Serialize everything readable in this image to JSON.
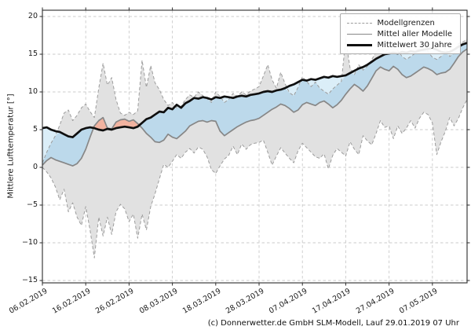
{
  "figure": {
    "ylabel": "Mittlere Lufttemperatur [°]",
    "footer": "(c) Donnerwetter.de GmbH SLM-Modell, Lauf 29.01.2019 07 Uhr"
  },
  "legend": {
    "location": "upper right",
    "items": [
      {
        "label": "Modellgrenzen",
        "style": "dashed-gray"
      },
      {
        "label": "Mittel aller Modelle",
        "style": "solid-gray"
      },
      {
        "label": "Mittelwert 30 Jahre",
        "style": "solid-black"
      }
    ]
  },
  "chart_data": {
    "type": "line",
    "title": "",
    "xlabel": "",
    "ylabel": "Mittlere Lufttemperatur [°]",
    "grid": true,
    "grid_style": "dashed",
    "xlim_days": [
      0,
      98
    ],
    "ylim": [
      -15.3,
      20.8
    ],
    "x_unit": "days (daily values, day 0 = 06.02.2019)",
    "x_ticks": [
      {
        "day": 0,
        "label": "06.02.2019"
      },
      {
        "day": 10,
        "label": "16.02.2019"
      },
      {
        "day": 20,
        "label": "26.02.2019"
      },
      {
        "day": 30,
        "label": "08.03.2019"
      },
      {
        "day": 40,
        "label": "18.03.2019"
      },
      {
        "day": 50,
        "label": "28.03.2019"
      },
      {
        "day": 60,
        "label": "07.04.2019"
      },
      {
        "day": 70,
        "label": "17.04.2019"
      },
      {
        "day": 80,
        "label": "27.04.2019"
      },
      {
        "day": 90,
        "label": "07.05.2019"
      }
    ],
    "y_ticks": [
      {
        "value": 20,
        "label": "20"
      },
      {
        "value": 15,
        "label": "15"
      },
      {
        "value": 10,
        "label": "10"
      },
      {
        "value": 5,
        "label": "5"
      },
      {
        "value": 0,
        "label": "0"
      },
      {
        "value": -5,
        "label": "−5"
      },
      {
        "value": -10,
        "label": "−10"
      },
      {
        "value": -15,
        "label": "−15"
      }
    ],
    "fills": {
      "band": "#e1e1e1",
      "below_normal": "#bcd9eb",
      "below_normal_outside_band": "#dbeef8",
      "above_normal": "#f2b3a0"
    },
    "colors": {
      "band_edge": "#9c9c9c",
      "model_mean": "#878787",
      "mean_30y": "#0f0f0f",
      "grid": "#cbcbcb",
      "frame": "#2b2b2b"
    },
    "series": [
      {
        "name": "Modellgrenzen (oberes Limit)",
        "style": "dashed",
        "color": "#9c9c9c",
        "values": [
          0.6,
          2.0,
          3.2,
          4.2,
          5.6,
          7.2,
          7.6,
          6.2,
          6.9,
          7.9,
          8.4,
          7.4,
          6.6,
          10.5,
          13.8,
          10.9,
          11.9,
          9.0,
          7.2,
          6.9,
          7.3,
          7.0,
          7.5,
          14.2,
          10.6,
          13.5,
          11.2,
          10.3,
          9.0,
          8.2,
          8.6,
          7.9,
          8.1,
          9.0,
          9.6,
          9.3,
          10.0,
          9.5,
          9.1,
          8.6,
          10.0,
          9.4,
          8.6,
          9.0,
          9.8,
          9.4,
          10.0,
          9.6,
          10.1,
          10.4,
          10.7,
          12.1,
          13.6,
          11.6,
          10.5,
          12.6,
          11.1,
          9.9,
          9.5,
          10.6,
          12.0,
          11.4,
          10.7,
          11.3,
          10.5,
          10.1,
          9.7,
          10.4,
          10.9,
          11.4,
          17.0,
          13.2,
          12.3,
          13.6,
          12.9,
          13.4,
          14.3,
          15.3,
          15.9,
          15.4,
          15.7,
          16.3,
          15.5,
          14.7,
          14.3,
          14.7,
          15.1,
          16.0,
          16.6,
          15.3,
          14.6,
          14.3,
          14.7,
          15.9,
          14.7,
          15.1,
          16.4,
          16.6,
          17.0
        ]
      },
      {
        "name": "Modellgrenzen (unteres Limit)",
        "style": "dashed",
        "color": "#9c9c9c",
        "values": [
          0.0,
          -0.6,
          -1.4,
          -2.6,
          -4.3,
          -2.9,
          -5.9,
          -4.7,
          -6.6,
          -7.7,
          -5.2,
          -8.3,
          -12.0,
          -6.6,
          -9.1,
          -6.6,
          -8.9,
          -5.9,
          -4.9,
          -5.5,
          -7.2,
          -6.2,
          -9.4,
          -6.2,
          -8.3,
          -5.2,
          -3.5,
          -1.5,
          0.4,
          0.0,
          0.8,
          1.7,
          1.2,
          2.0,
          2.5,
          1.9,
          2.7,
          2.4,
          1.4,
          -0.3,
          -0.8,
          0.2,
          1.1,
          1.6,
          2.8,
          1.7,
          3.1,
          2.4,
          3.0,
          3.2,
          3.3,
          3.6,
          2.0,
          0.3,
          1.5,
          2.6,
          1.9,
          1.2,
          0.6,
          2.2,
          3.2,
          2.6,
          2.0,
          1.4,
          1.2,
          1.8,
          -0.2,
          1.6,
          2.5,
          2.0,
          1.5,
          3.4,
          2.4,
          1.7,
          4.2,
          3.5,
          3.0,
          4.5,
          6.2,
          5.3,
          5.5,
          3.8,
          5.5,
          4.5,
          5.2,
          6.2,
          5.2,
          6.5,
          7.3,
          7.0,
          5.9,
          1.7,
          3.4,
          4.8,
          6.6,
          5.5,
          6.5,
          7.9,
          9.0
        ]
      },
      {
        "name": "Mittel aller Modelle",
        "style": "solid",
        "color": "#878787",
        "values": [
          0.3,
          0.9,
          1.3,
          1.0,
          0.8,
          0.6,
          0.4,
          0.2,
          0.5,
          1.2,
          2.4,
          4.0,
          5.5,
          6.2,
          6.6,
          5.2,
          5.1,
          6.0,
          6.3,
          6.4,
          6.1,
          6.3,
          5.8,
          5.2,
          4.5,
          4.0,
          3.4,
          3.3,
          3.6,
          4.4,
          4.0,
          3.8,
          4.3,
          4.8,
          5.5,
          5.8,
          6.1,
          6.2,
          6.0,
          6.2,
          6.1,
          4.8,
          4.2,
          4.6,
          5.0,
          5.4,
          5.7,
          6.0,
          6.2,
          6.3,
          6.5,
          6.9,
          7.3,
          7.7,
          8.0,
          8.4,
          8.2,
          7.8,
          7.3,
          7.6,
          8.3,
          8.6,
          8.4,
          8.2,
          8.6,
          8.8,
          8.4,
          7.9,
          8.3,
          8.9,
          9.7,
          10.4,
          11.0,
          10.6,
          10.1,
          10.8,
          11.8,
          12.8,
          13.3,
          13.0,
          12.8,
          13.4,
          13.0,
          12.3,
          11.9,
          12.1,
          12.5,
          12.9,
          13.3,
          13.1,
          12.8,
          12.3,
          12.5,
          12.6,
          13.0,
          13.8,
          14.7,
          15.3,
          15.7
        ]
      },
      {
        "name": "Mittelwert 30 Jahre",
        "style": "solid-thick",
        "color": "#0f0f0f",
        "values": [
          5.2,
          5.3,
          5.0,
          4.8,
          4.7,
          4.4,
          4.1,
          4.0,
          4.5,
          5.0,
          5.2,
          5.3,
          5.2,
          5.0,
          4.9,
          5.1,
          5.0,
          5.2,
          5.3,
          5.4,
          5.3,
          5.2,
          5.4,
          5.9,
          6.4,
          6.6,
          7.0,
          7.4,
          7.3,
          7.9,
          7.7,
          8.3,
          7.9,
          8.5,
          8.8,
          9.2,
          9.1,
          9.3,
          9.2,
          9.0,
          9.3,
          9.2,
          9.4,
          9.3,
          9.2,
          9.4,
          9.5,
          9.4,
          9.6,
          9.7,
          9.8,
          10.0,
          10.1,
          10.0,
          10.2,
          10.3,
          10.5,
          10.8,
          11.0,
          11.3,
          11.6,
          11.5,
          11.7,
          11.6,
          11.8,
          12.0,
          11.9,
          12.1,
          12.0,
          12.1,
          12.2,
          12.5,
          12.8,
          13.1,
          13.3,
          13.6,
          14.0,
          14.4,
          14.7,
          15.0,
          15.1,
          15.2,
          15.1,
          15.3,
          15.2,
          15.4,
          15.3,
          15.5,
          15.6,
          15.7,
          15.8,
          15.6,
          15.3,
          15.2,
          15.3,
          15.6,
          16.0,
          16.3,
          16.5
        ]
      }
    ]
  }
}
